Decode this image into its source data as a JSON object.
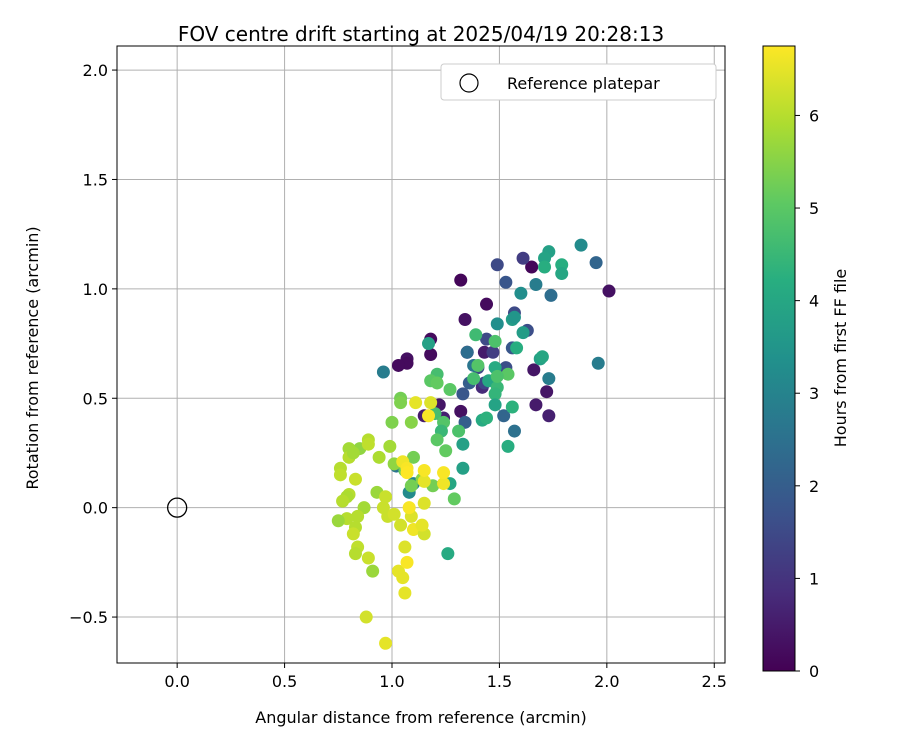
{
  "chart_data": {
    "type": "scatter",
    "title": "FOV centre drift starting at 2025/04/19 20:28:13",
    "xlabel": "Angular distance from reference (arcmin)",
    "ylabel": "Rotation from reference (arcmin)",
    "xlim": [
      -0.28,
      2.55
    ],
    "ylim": [
      -0.71,
      2.11
    ],
    "xticks": [
      0.0,
      0.5,
      1.0,
      1.5,
      2.0,
      2.5
    ],
    "xtick_labels": [
      "0.0",
      "0.5",
      "1.0",
      "1.5",
      "2.0",
      "2.5"
    ],
    "yticks": [
      -0.5,
      0.0,
      0.5,
      1.0,
      1.5,
      2.0
    ],
    "ytick_labels": [
      "−0.5",
      "0.0",
      "0.5",
      "1.0",
      "1.5",
      "2.0"
    ],
    "grid": true,
    "legend": {
      "placement": "top-right",
      "entries": [
        "Reference platepar"
      ]
    },
    "reference_point": {
      "x": 0.0,
      "y": 0.0,
      "marker": "open-circle"
    },
    "colorbar": {
      "label": "Hours from first FF file",
      "colormap": "viridis",
      "range": [
        0,
        6.75
      ],
      "ticks": [
        0,
        1,
        2,
        3,
        4,
        5,
        6
      ],
      "tick_labels": [
        "0",
        "1",
        "2",
        "3",
        "4",
        "5",
        "6"
      ]
    },
    "points": [
      {
        "x": 1.32,
        "y": 1.04,
        "h": 0.1
      },
      {
        "x": 1.65,
        "y": 1.1,
        "h": 0.1
      },
      {
        "x": 2.01,
        "y": 0.99,
        "h": 0.3
      },
      {
        "x": 1.44,
        "y": 0.93,
        "h": 0.2
      },
      {
        "x": 1.34,
        "y": 0.86,
        "h": 0.3
      },
      {
        "x": 1.18,
        "y": 0.77,
        "h": 0.2
      },
      {
        "x": 1.18,
        "y": 0.7,
        "h": 0.2
      },
      {
        "x": 1.07,
        "y": 0.68,
        "h": 0.3
      },
      {
        "x": 1.07,
        "y": 0.66,
        "h": 0.2
      },
      {
        "x": 1.03,
        "y": 0.65,
        "h": 0.2
      },
      {
        "x": 1.35,
        "y": 0.71,
        "h": 0.3
      },
      {
        "x": 1.43,
        "y": 0.71,
        "h": 0.5
      },
      {
        "x": 1.66,
        "y": 0.63,
        "h": 0.4
      },
      {
        "x": 1.67,
        "y": 0.47,
        "h": 0.5
      },
      {
        "x": 1.73,
        "y": 0.42,
        "h": 0.6
      },
      {
        "x": 1.72,
        "y": 0.53,
        "h": 0.4
      },
      {
        "x": 1.32,
        "y": 0.44,
        "h": 0.3
      },
      {
        "x": 1.22,
        "y": 0.47,
        "h": 0.4
      },
      {
        "x": 1.15,
        "y": 0.42,
        "h": 0.5
      },
      {
        "x": 1.24,
        "y": 0.41,
        "h": 0.6
      },
      {
        "x": 1.42,
        "y": 0.55,
        "h": 0.8
      },
      {
        "x": 1.49,
        "y": 1.11,
        "h": 1.5
      },
      {
        "x": 1.61,
        "y": 1.14,
        "h": 1.2
      },
      {
        "x": 1.53,
        "y": 1.03,
        "h": 1.8
      },
      {
        "x": 1.57,
        "y": 0.89,
        "h": 1.5
      },
      {
        "x": 1.63,
        "y": 0.81,
        "h": 1.6
      },
      {
        "x": 1.56,
        "y": 0.73,
        "h": 1.8
      },
      {
        "x": 1.44,
        "y": 0.77,
        "h": 1.5
      },
      {
        "x": 1.47,
        "y": 0.71,
        "h": 1.2
      },
      {
        "x": 1.4,
        "y": 0.64,
        "h": 1.5
      },
      {
        "x": 1.36,
        "y": 0.57,
        "h": 2.0
      },
      {
        "x": 1.33,
        "y": 0.52,
        "h": 1.8
      },
      {
        "x": 1.34,
        "y": 0.39,
        "h": 2.0
      },
      {
        "x": 1.43,
        "y": 0.57,
        "h": 1.4
      },
      {
        "x": 1.52,
        "y": 0.42,
        "h": 2.2
      },
      {
        "x": 1.57,
        "y": 0.35,
        "h": 2.5
      },
      {
        "x": 1.53,
        "y": 0.64,
        "h": 1.6
      },
      {
        "x": 1.95,
        "y": 1.12,
        "h": 2.2
      },
      {
        "x": 1.74,
        "y": 0.97,
        "h": 2.4
      },
      {
        "x": 1.67,
        "y": 1.02,
        "h": 2.8
      },
      {
        "x": 1.96,
        "y": 0.66,
        "h": 2.8
      },
      {
        "x": 1.73,
        "y": 0.59,
        "h": 2.8
      },
      {
        "x": 1.88,
        "y": 1.2,
        "h": 3.2
      },
      {
        "x": 1.6,
        "y": 0.98,
        "h": 3.3
      },
      {
        "x": 1.35,
        "y": 0.71,
        "h": 2.4
      },
      {
        "x": 0.96,
        "y": 0.62,
        "h": 2.8
      },
      {
        "x": 1.38,
        "y": 0.65,
        "h": 2.6
      },
      {
        "x": 1.02,
        "y": 0.19,
        "h": 2.6
      },
      {
        "x": 1.08,
        "y": 0.07,
        "h": 3.2
      },
      {
        "x": 1.1,
        "y": 0.11,
        "h": 3.0
      },
      {
        "x": 1.73,
        "y": 1.17,
        "h": 3.8
      },
      {
        "x": 1.71,
        "y": 1.14,
        "h": 3.9
      },
      {
        "x": 1.71,
        "y": 1.1,
        "h": 4.2
      },
      {
        "x": 1.79,
        "y": 1.11,
        "h": 4.2
      },
      {
        "x": 1.79,
        "y": 1.07,
        "h": 4.0
      },
      {
        "x": 1.56,
        "y": 0.86,
        "h": 3.7
      },
      {
        "x": 1.57,
        "y": 0.87,
        "h": 3.5
      },
      {
        "x": 1.49,
        "y": 0.84,
        "h": 3.3
      },
      {
        "x": 1.61,
        "y": 0.8,
        "h": 3.7
      },
      {
        "x": 1.69,
        "y": 0.68,
        "h": 3.8
      },
      {
        "x": 1.7,
        "y": 0.69,
        "h": 4.0
      },
      {
        "x": 1.58,
        "y": 0.73,
        "h": 4.2
      },
      {
        "x": 1.48,
        "y": 0.64,
        "h": 4.1
      },
      {
        "x": 1.45,
        "y": 0.58,
        "h": 4.0
      },
      {
        "x": 1.49,
        "y": 0.55,
        "h": 4.5
      },
      {
        "x": 1.48,
        "y": 0.52,
        "h": 4.4
      },
      {
        "x": 1.48,
        "y": 0.47,
        "h": 3.9
      },
      {
        "x": 1.42,
        "y": 0.4,
        "h": 4.1
      },
      {
        "x": 1.44,
        "y": 0.41,
        "h": 4.3
      },
      {
        "x": 1.56,
        "y": 0.46,
        "h": 4.3
      },
      {
        "x": 1.54,
        "y": 0.28,
        "h": 4.2
      },
      {
        "x": 1.33,
        "y": 0.29,
        "h": 3.8
      },
      {
        "x": 1.33,
        "y": 0.18,
        "h": 3.8
      },
      {
        "x": 1.27,
        "y": 0.11,
        "h": 4.0
      },
      {
        "x": 1.26,
        "y": -0.21,
        "h": 4.1
      },
      {
        "x": 1.17,
        "y": 0.75,
        "h": 3.8
      },
      {
        "x": 1.39,
        "y": 0.79,
        "h": 4.6
      },
      {
        "x": 1.48,
        "y": 0.76,
        "h": 4.8
      },
      {
        "x": 1.4,
        "y": 0.65,
        "h": 4.9
      },
      {
        "x": 1.54,
        "y": 0.61,
        "h": 5.0
      },
      {
        "x": 1.49,
        "y": 0.6,
        "h": 4.8
      },
      {
        "x": 1.38,
        "y": 0.59,
        "h": 4.7
      },
      {
        "x": 1.21,
        "y": 0.61,
        "h": 4.7
      },
      {
        "x": 1.18,
        "y": 0.58,
        "h": 5.0
      },
      {
        "x": 1.21,
        "y": 0.57,
        "h": 5.1
      },
      {
        "x": 1.27,
        "y": 0.54,
        "h": 5.0
      },
      {
        "x": 1.04,
        "y": 0.5,
        "h": 5.3
      },
      {
        "x": 1.04,
        "y": 0.48,
        "h": 5.4
      },
      {
        "x": 1.2,
        "y": 0.43,
        "h": 4.7
      },
      {
        "x": 1.24,
        "y": 0.39,
        "h": 4.9
      },
      {
        "x": 1.23,
        "y": 0.35,
        "h": 4.5
      },
      {
        "x": 1.31,
        "y": 0.35,
        "h": 4.8
      },
      {
        "x": 1.21,
        "y": 0.31,
        "h": 5.0
      },
      {
        "x": 1.25,
        "y": 0.26,
        "h": 5.1
      },
      {
        "x": 1.09,
        "y": 0.39,
        "h": 5.5
      },
      {
        "x": 1.0,
        "y": 0.39,
        "h": 5.4
      },
      {
        "x": 1.01,
        "y": 0.2,
        "h": 5.6
      },
      {
        "x": 0.99,
        "y": 0.28,
        "h": 5.8
      },
      {
        "x": 1.1,
        "y": 0.23,
        "h": 5.3
      },
      {
        "x": 1.06,
        "y": 0.17,
        "h": 5.2
      },
      {
        "x": 1.09,
        "y": 0.1,
        "h": 5.3
      },
      {
        "x": 1.14,
        "y": 0.13,
        "h": 5.5
      },
      {
        "x": 1.19,
        "y": 0.1,
        "h": 5.3
      },
      {
        "x": 1.29,
        "y": 0.04,
        "h": 5.1
      },
      {
        "x": 0.85,
        "y": 0.27,
        "h": 5.6
      },
      {
        "x": 0.8,
        "y": 0.27,
        "h": 5.8
      },
      {
        "x": 0.8,
        "y": 0.23,
        "h": 6.0
      },
      {
        "x": 0.82,
        "y": 0.25,
        "h": 5.8
      },
      {
        "x": 0.89,
        "y": 0.31,
        "h": 6.0
      },
      {
        "x": 0.89,
        "y": 0.29,
        "h": 6.1
      },
      {
        "x": 0.94,
        "y": 0.23,
        "h": 5.9
      },
      {
        "x": 0.76,
        "y": 0.18,
        "h": 6.0
      },
      {
        "x": 0.76,
        "y": 0.15,
        "h": 6.1
      },
      {
        "x": 0.83,
        "y": 0.13,
        "h": 6.2
      },
      {
        "x": 0.8,
        "y": 0.06,
        "h": 6.0
      },
      {
        "x": 0.79,
        "y": 0.05,
        "h": 5.9
      },
      {
        "x": 0.77,
        "y": 0.03,
        "h": 6.0
      },
      {
        "x": 0.93,
        "y": 0.07,
        "h": 5.7
      },
      {
        "x": 0.97,
        "y": 0.05,
        "h": 6.2
      },
      {
        "x": 0.96,
        "y": 0.0,
        "h": 6.2
      },
      {
        "x": 0.98,
        "y": -0.04,
        "h": 6.2
      },
      {
        "x": 0.87,
        "y": 0.0,
        "h": 5.8
      },
      {
        "x": 0.84,
        "y": -0.04,
        "h": 6.0
      },
      {
        "x": 0.79,
        "y": -0.05,
        "h": 6.0
      },
      {
        "x": 0.75,
        "y": -0.06,
        "h": 5.7
      },
      {
        "x": 0.83,
        "y": -0.09,
        "h": 6.0
      },
      {
        "x": 0.82,
        "y": -0.12,
        "h": 6.2
      },
      {
        "x": 0.84,
        "y": -0.18,
        "h": 6.1
      },
      {
        "x": 0.83,
        "y": -0.21,
        "h": 6.0
      },
      {
        "x": 0.89,
        "y": -0.23,
        "h": 6.2
      },
      {
        "x": 0.91,
        "y": -0.29,
        "h": 5.7
      },
      {
        "x": 0.88,
        "y": -0.5,
        "h": 6.3
      },
      {
        "x": 0.97,
        "y": -0.62,
        "h": 6.5
      },
      {
        "x": 1.04,
        "y": -0.08,
        "h": 6.3
      },
      {
        "x": 1.01,
        "y": -0.03,
        "h": 6.3
      },
      {
        "x": 1.09,
        "y": -0.04,
        "h": 6.4
      },
      {
        "x": 1.1,
        "y": -0.1,
        "h": 6.6
      },
      {
        "x": 1.15,
        "y": -0.12,
        "h": 6.3
      },
      {
        "x": 1.14,
        "y": -0.08,
        "h": 6.5
      },
      {
        "x": 1.06,
        "y": -0.18,
        "h": 6.4
      },
      {
        "x": 1.03,
        "y": -0.29,
        "h": 6.5
      },
      {
        "x": 1.05,
        "y": -0.32,
        "h": 6.5
      },
      {
        "x": 1.07,
        "y": -0.25,
        "h": 6.7
      },
      {
        "x": 1.06,
        "y": -0.39,
        "h": 6.5
      },
      {
        "x": 1.08,
        "y": 0.0,
        "h": 6.7
      },
      {
        "x": 1.15,
        "y": 0.02,
        "h": 6.4
      },
      {
        "x": 1.15,
        "y": 0.12,
        "h": 6.5
      },
      {
        "x": 1.15,
        "y": 0.17,
        "h": 6.7
      },
      {
        "x": 1.05,
        "y": 0.21,
        "h": 6.6
      },
      {
        "x": 1.07,
        "y": 0.18,
        "h": 6.7
      },
      {
        "x": 1.07,
        "y": 0.16,
        "h": 6.8
      },
      {
        "x": 1.24,
        "y": 0.11,
        "h": 6.6
      },
      {
        "x": 1.24,
        "y": 0.16,
        "h": 6.7
      },
      {
        "x": 1.11,
        "y": 0.48,
        "h": 6.5
      },
      {
        "x": 1.18,
        "y": 0.48,
        "h": 6.4
      },
      {
        "x": 1.17,
        "y": 0.42,
        "h": 6.7
      }
    ]
  }
}
